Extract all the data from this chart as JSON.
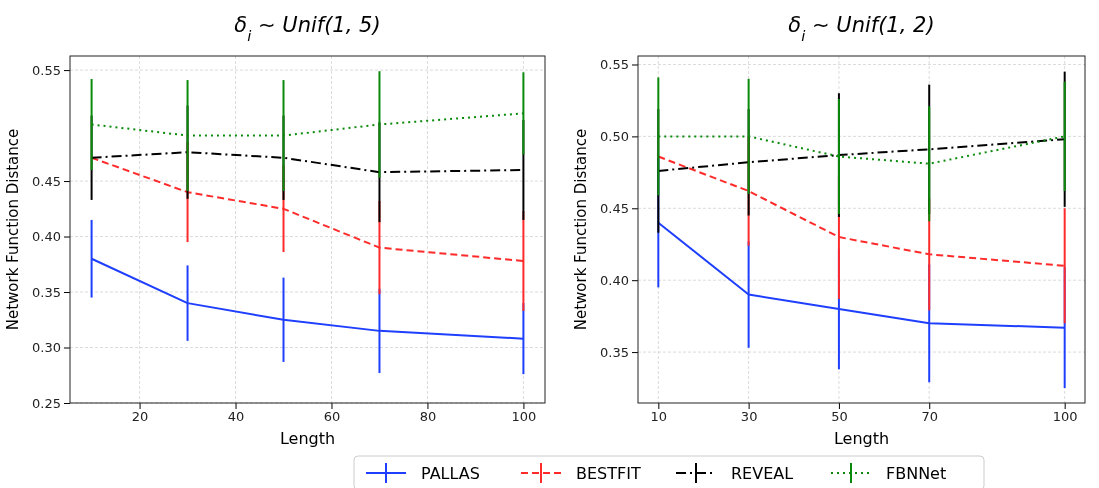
{
  "chart_data": [
    {
      "type": "line",
      "title": "δ$_{i}$ ∼ Unif(1, 5)",
      "xlabel": "Length",
      "ylabel": "Network Function Distance",
      "x": [
        10,
        30,
        50,
        70,
        100
      ],
      "xlim": [
        5.5,
        104.5
      ],
      "xticks": [
        20,
        40,
        60,
        80,
        100
      ],
      "ylim": [
        0.25,
        0.5627
      ],
      "yticks": [
        0.25,
        {
          "value": 0.3,
          "label": "0.30"
        },
        0.35,
        {
          "value": 0.4,
          "label": "0.40"
        },
        0.45,
        0.55
      ],
      "grid": true,
      "legend": "bottom",
      "marker": "none",
      "series": [
        {
          "name": "PALLAS",
          "color": "#1f3fff",
          "line_style": "solid",
          "values": [
            0.38,
            0.34,
            0.325,
            0.315,
            0.308
          ],
          "errors": [
            0.035,
            0.034,
            0.038,
            0.038,
            0.032
          ]
        },
        {
          "name": "BESTFIT",
          "color": "#ff2a2a",
          "line_style": "dashed",
          "values": [
            0.471,
            0.44,
            0.425,
            0.39,
            0.378
          ],
          "errors": [
            null,
            0.045,
            0.039,
            0.042,
            0.045
          ]
        },
        {
          "name": "REVEAL",
          "color": "#000000",
          "line_style": "dashdot",
          "values": [
            0.471,
            0.476,
            0.471,
            0.458,
            0.46
          ],
          "errors": [
            0.038,
            0.042,
            0.038,
            0.045,
            0.045
          ]
        },
        {
          "name": "FBNNet",
          "color": "#0a8a0a",
          "line_style": "dotted",
          "values": [
            0.501,
            0.491,
            0.491,
            0.501,
            0.511
          ],
          "errors": [
            0.041,
            0.05,
            0.05,
            0.048,
            0.037
          ]
        }
      ]
    },
    {
      "type": "line",
      "title": "δ$_{i}$ ∼ Unif(1, 2)",
      "xlabel": "Length",
      "ylabel": "Network Function Distance",
      "x": [
        10,
        30,
        50,
        70,
        100
      ],
      "xlim": [
        5.5,
        104.5
      ],
      "xticks": [
        10,
        30,
        50,
        70,
        100
      ],
      "ylim": [
        0.3146,
        0.5559
      ],
      "yticks": [
        0.35,
        {
          "value": 0.4,
          "label": "0.40"
        },
        0.45,
        {
          "value": 0.5,
          "label": "0.50"
        },
        0.55
      ],
      "grid": true,
      "legend": false,
      "marker": "none",
      "series": [
        {
          "color": "#1f3fff",
          "line_style": "solid",
          "values": [
            0.44,
            0.39,
            0.38,
            0.37,
            0.367
          ],
          "errors": [
            0.045,
            0.037,
            0.042,
            0.041,
            0.042
          ]
        },
        {
          "color": "#ff2a2a",
          "line_style": "dashed",
          "values": [
            0.486,
            0.462,
            0.43,
            0.418,
            0.41
          ],
          "errors": [
            null,
            0.038,
            0.043,
            0.039,
            0.04
          ]
        },
        {
          "color": "#000000",
          "line_style": "dashdot",
          "values": [
            0.476,
            0.482,
            0.487,
            0.491,
            0.498
          ],
          "errors": [
            0.043,
            0.037,
            0.043,
            0.045,
            0.047
          ]
        },
        {
          "color": "#0a8a0a",
          "line_style": "dotted",
          "values": [
            0.5,
            0.5,
            0.486,
            0.481,
            0.5
          ],
          "errors": [
            0.041,
            0.04,
            0.04,
            0.04,
            0.038
          ]
        }
      ]
    }
  ]
}
